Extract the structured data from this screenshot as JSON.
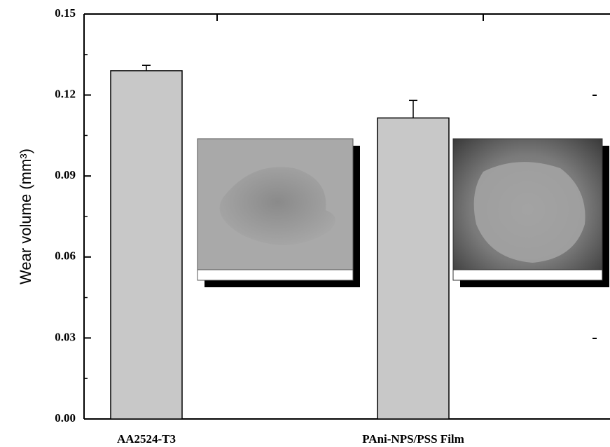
{
  "chart_data": {
    "type": "bar",
    "y_label": "Wear volume (mm³)",
    "categories": [
      "AA2524-T3",
      "PAni-NPS/PSS Film"
    ],
    "values": [
      0.129,
      0.1115
    ],
    "errors": [
      0.002,
      0.0065
    ],
    "color": "#c8c8c8",
    "ylim": [
      0,
      0.15
    ],
    "yticks": [
      {
        "value": 0,
        "label": "0.00"
      },
      {
        "value": 0.03,
        "label": "0.03"
      },
      {
        "value": 0.06,
        "label": "0.06"
      },
      {
        "value": 0.09,
        "label": "0.09"
      },
      {
        "value": 0.12,
        "label": "0.12"
      },
      {
        "value": 0.15,
        "label": "0.15"
      }
    ]
  }
}
